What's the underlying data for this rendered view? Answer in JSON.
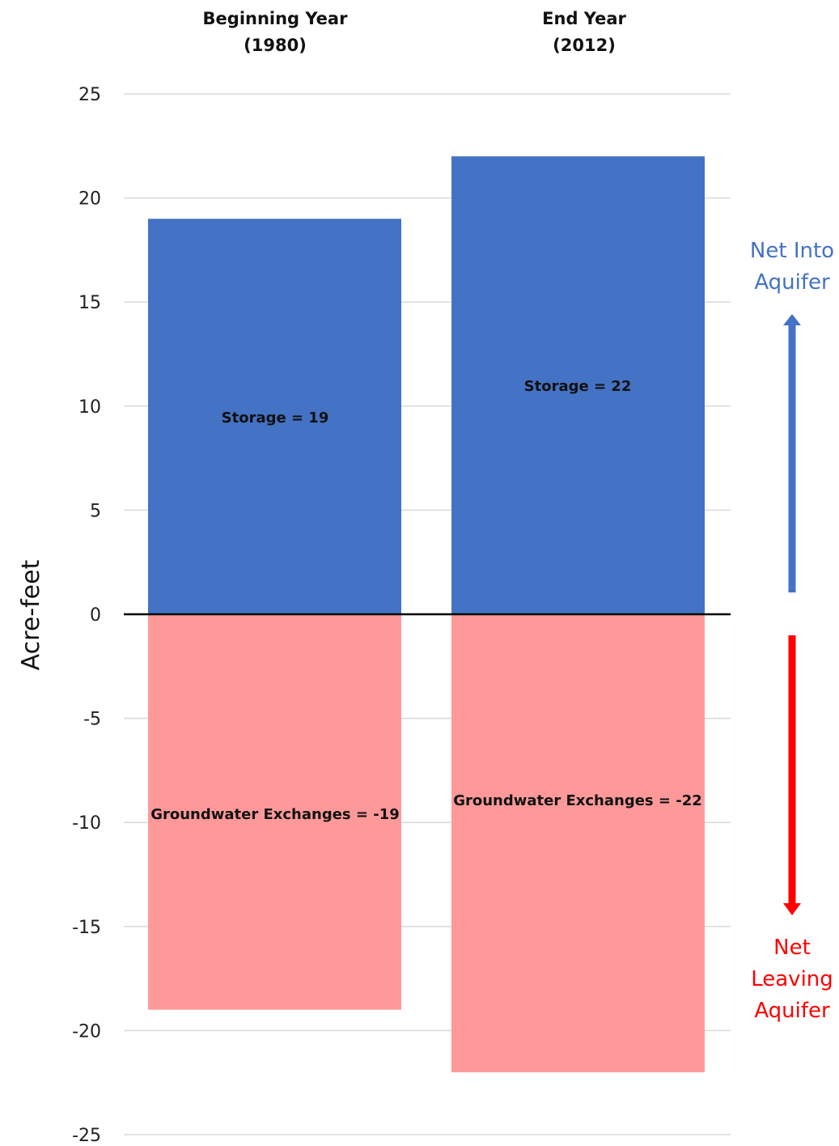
{
  "chart_data": {
    "type": "bar",
    "stacked": true,
    "categories": [
      "Beginning Year (1980)",
      "End Year (2012)"
    ],
    "column_titles": [
      {
        "line1": "Beginning Year",
        "line2": "(1980)"
      },
      {
        "line1": "End Year",
        "line2": "(2012)"
      }
    ],
    "series": [
      {
        "name": "Storage",
        "values": [
          19,
          22
        ],
        "color": "#4472C4"
      },
      {
        "name": "Groundwater Exchanges",
        "values": [
          -19,
          -22
        ],
        "color": "#FF9999"
      }
    ],
    "bar_labels": [
      [
        "Storage = 19",
        "Storage = 22"
      ],
      [
        "Groundwater Exchanges = -19",
        "Groundwater Exchanges = -22"
      ]
    ],
    "ylabel": "Acre-feet",
    "ylim": [
      -25,
      25
    ],
    "yticks": [
      25,
      20,
      15,
      10,
      5,
      0,
      -5,
      -10,
      -15,
      -20,
      -25
    ],
    "grid": true,
    "annotations": {
      "into": {
        "lines": [
          "Net Into",
          "Aquifer"
        ],
        "color": "#4472C4"
      },
      "leaving": {
        "lines": [
          "Net",
          "Leaving",
          "Aquifer"
        ],
        "color": "#FF0000"
      }
    }
  }
}
